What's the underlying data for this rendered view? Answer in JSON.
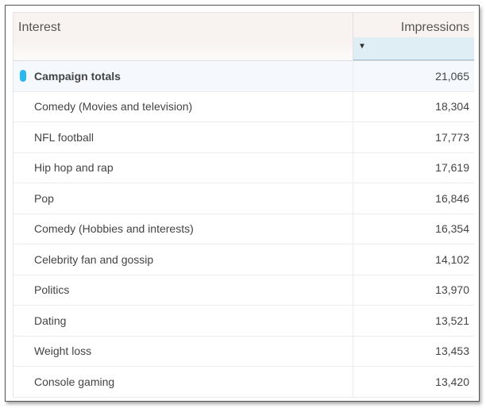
{
  "columns": {
    "interest": "Interest",
    "impressions": "Impressions",
    "sort_icon": "sort-descending-icon"
  },
  "accent": "#2bb8f0",
  "total": {
    "label": "Campaign totals",
    "impressions": "21,065"
  },
  "rows": [
    {
      "label": "Comedy (Movies and television)",
      "impressions": "18,304"
    },
    {
      "label": "NFL football",
      "impressions": "17,773"
    },
    {
      "label": "Hip hop and rap",
      "impressions": "17,619"
    },
    {
      "label": "Pop",
      "impressions": "16,846"
    },
    {
      "label": "Comedy (Hobbies and interests)",
      "impressions": "16,354"
    },
    {
      "label": "Celebrity fan and gossip",
      "impressions": "14,102"
    },
    {
      "label": "Politics",
      "impressions": "13,970"
    },
    {
      "label": "Dating",
      "impressions": "13,521"
    },
    {
      "label": "Weight loss",
      "impressions": "13,453"
    },
    {
      "label": "Console gaming",
      "impressions": "13,420"
    }
  ]
}
